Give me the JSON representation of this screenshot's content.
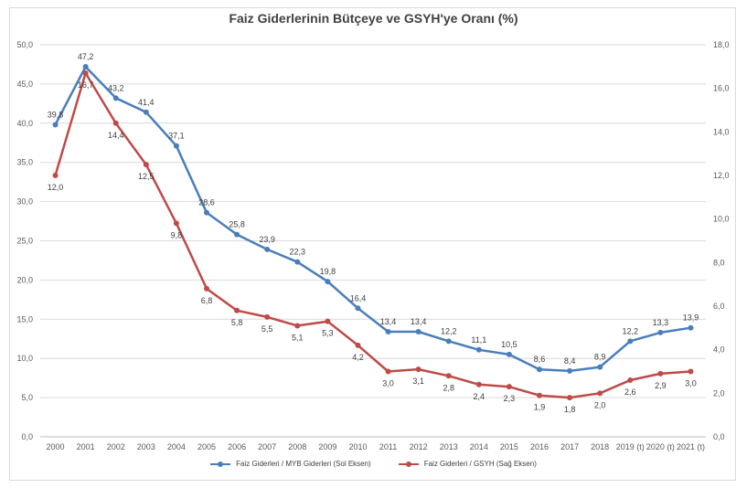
{
  "chart_data": {
    "type": "line",
    "title": "Faiz Giderlerinin Bütçeye ve GSYH'ye Oranı (%)",
    "categories": [
      "2000",
      "2001",
      "2002",
      "2003",
      "2004",
      "2005",
      "2006",
      "2007",
      "2008",
      "2009",
      "2010",
      "2011",
      "2012",
      "2013",
      "2014",
      "2015",
      "2016",
      "2017",
      "2018",
      "2019 (t)",
      "2020 (t)",
      "2021 (t)"
    ],
    "left_axis": {
      "ylim": [
        0,
        50
      ],
      "ticks": [
        "0,0",
        "5,0",
        "10,0",
        "15,0",
        "20,0",
        "25,0",
        "30,0",
        "35,0",
        "40,0",
        "45,0",
        "50,0"
      ]
    },
    "right_axis": {
      "ylim": [
        0,
        18
      ],
      "ticks": [
        "0,0",
        "2,0",
        "4,0",
        "6,0",
        "8,0",
        "10,0",
        "12,0",
        "14,0",
        "16,0",
        "18,0"
      ]
    },
    "grid": true,
    "legend_position": "bottom",
    "series": [
      {
        "name": "Faiz Giderleri / MYB Giderleri (Sol Eksen)",
        "axis": "left",
        "color": "#4a7ebb",
        "values": [
          39.8,
          47.2,
          43.2,
          41.4,
          37.1,
          28.6,
          25.8,
          23.9,
          22.3,
          19.8,
          16.4,
          13.4,
          13.4,
          12.2,
          11.1,
          10.5,
          8.6,
          8.4,
          8.9,
          12.2,
          13.3,
          13.9
        ],
        "labels": [
          "39,8",
          "47,2",
          "43,2",
          "41,4",
          "37,1",
          "28,6",
          "25,8",
          "23,9",
          "22,3",
          "19,8",
          "16,4",
          "13,4",
          "13,4",
          "12,2",
          "11,1",
          "10,5",
          "8,6",
          "8,4",
          "8,9",
          "12,2",
          "13,3",
          "13,9"
        ]
      },
      {
        "name": "Faiz Giderleri / GSYH (Sağ Eksen)",
        "axis": "right",
        "color": "#be4b48",
        "values": [
          12.0,
          16.7,
          14.4,
          12.5,
          9.8,
          6.8,
          5.8,
          5.5,
          5.1,
          5.3,
          4.2,
          3.0,
          3.1,
          2.8,
          2.4,
          2.3,
          1.9,
          1.8,
          2.0,
          2.6,
          2.9,
          3.0
        ],
        "labels": [
          "12,0",
          "16,7",
          "14,4",
          "12,5",
          "9,8",
          "6,8",
          "5,8",
          "5,5",
          "5,1",
          "5,3",
          "4,2",
          "3,0",
          "3,1",
          "2,8",
          "2,4",
          "2,3",
          "1,9",
          "1,8",
          "2,0",
          "2,6",
          "2,9",
          "3,0"
        ]
      }
    ]
  }
}
